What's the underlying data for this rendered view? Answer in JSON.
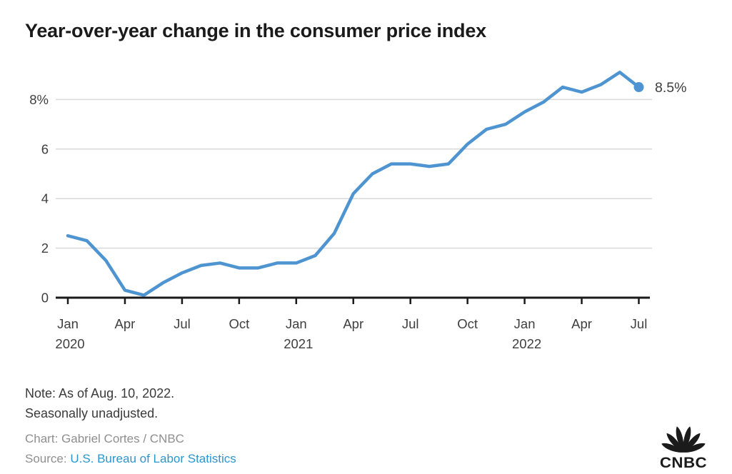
{
  "title": "Year-over-year change in the consumer price index",
  "chart_data": {
    "type": "line",
    "series_name": "CPI year-over-year percent change",
    "x": [
      "Jan 2020",
      "Feb 2020",
      "Mar 2020",
      "Apr 2020",
      "May 2020",
      "Jun 2020",
      "Jul 2020",
      "Aug 2020",
      "Sep 2020",
      "Oct 2020",
      "Nov 2020",
      "Dec 2020",
      "Jan 2021",
      "Feb 2021",
      "Mar 2021",
      "Apr 2021",
      "May 2021",
      "Jun 2021",
      "Jul 2021",
      "Aug 2021",
      "Sep 2021",
      "Oct 2021",
      "Nov 2021",
      "Dec 2021",
      "Jan 2022",
      "Feb 2022",
      "Mar 2022",
      "Apr 2022",
      "May 2022",
      "Jun 2022",
      "Jul 2022"
    ],
    "values": [
      2.5,
      2.3,
      1.5,
      0.3,
      0.1,
      0.6,
      1.0,
      1.3,
      1.4,
      1.2,
      1.2,
      1.4,
      1.4,
      1.7,
      2.6,
      4.2,
      5.0,
      5.4,
      5.4,
      5.3,
      5.4,
      6.2,
      6.8,
      7.0,
      7.5,
      7.9,
      8.5,
      8.3,
      8.6,
      9.1,
      8.5
    ],
    "ylim": [
      0,
      9.5
    ],
    "grid": true,
    "legend": "none",
    "end_label": "8.5%",
    "y_ticks": [
      {
        "value": 0,
        "label": "0"
      },
      {
        "value": 2,
        "label": "2"
      },
      {
        "value": 4,
        "label": "4"
      },
      {
        "value": 6,
        "label": "6"
      },
      {
        "value": 8,
        "label": "8%"
      }
    ],
    "x_ticks": [
      {
        "index": 0,
        "month": "Jan",
        "year": "2020"
      },
      {
        "index": 3,
        "month": "Apr",
        "year": ""
      },
      {
        "index": 6,
        "month": "Jul",
        "year": ""
      },
      {
        "index": 9,
        "month": "Oct",
        "year": ""
      },
      {
        "index": 12,
        "month": "Jan",
        "year": "2021"
      },
      {
        "index": 15,
        "month": "Apr",
        "year": ""
      },
      {
        "index": 18,
        "month": "Jul",
        "year": ""
      },
      {
        "index": 21,
        "month": "Oct",
        "year": ""
      },
      {
        "index": 24,
        "month": "Jan",
        "year": "2022"
      },
      {
        "index": 27,
        "month": "Apr",
        "year": ""
      },
      {
        "index": 30,
        "month": "Jul",
        "year": ""
      }
    ],
    "colors": {
      "line": "#4e94d0",
      "grid": "#d9d9d9",
      "axis": "#1a1a1a",
      "label": "#3f3f3f"
    }
  },
  "footer": {
    "note_line1": "Note: As of Aug. 10, 2022.",
    "note_line2": "Seasonally unadjusted.",
    "credit": "Chart: Gabriel Cortes / CNBC",
    "source_prefix": "Source: ",
    "source_link": "U.S. Bureau of Labor Statistics"
  },
  "logo": {
    "wordmark": "CNBC"
  }
}
